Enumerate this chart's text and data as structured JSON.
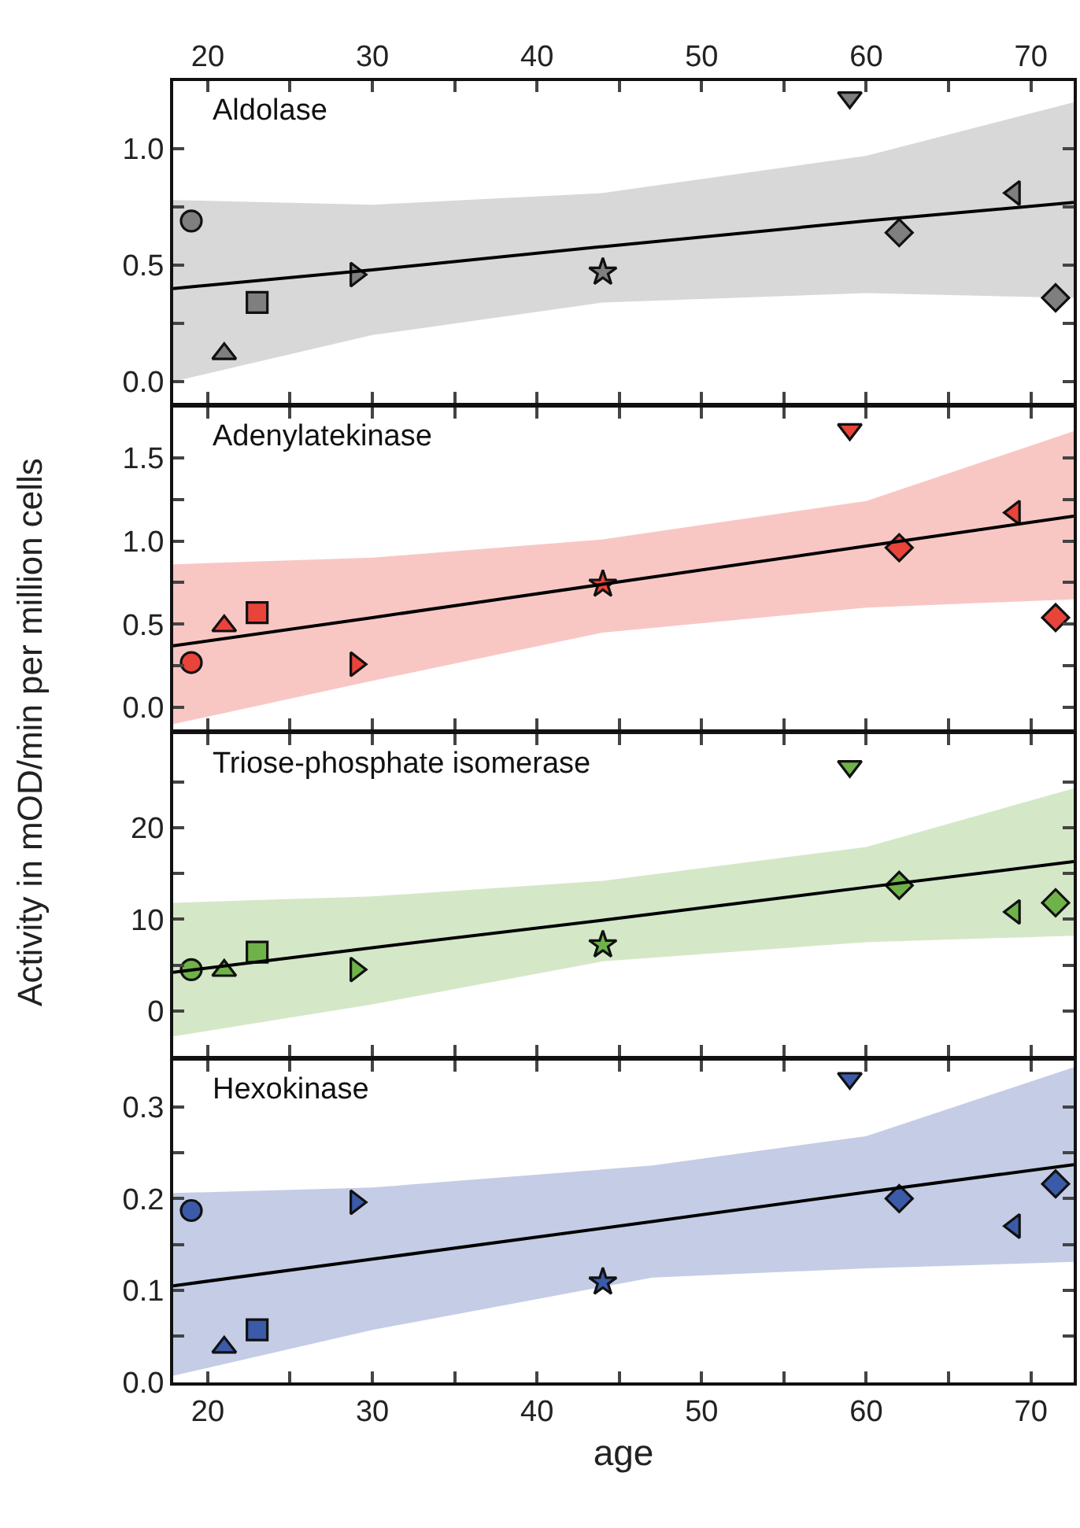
{
  "chart_data": [
    {
      "type": "scatter",
      "title": "Aldolase",
      "ylabel": "Activity in mOD/min per million cells",
      "xlim": [
        17.9,
        72.6
      ],
      "xticks": [
        20,
        {
          "value": 25,
          "label": null
        },
        30,
        {
          "value": 35,
          "label": null
        },
        40,
        {
          "value": 45,
          "label": null
        },
        50,
        {
          "value": 55,
          "label": null
        },
        60,
        {
          "value": 65,
          "label": null
        },
        70
      ],
      "ylim": [
        -0.09,
        1.29
      ],
      "yticks": [
        {
          "value": 0,
          "label": "0.0"
        },
        {
          "value": 0.25,
          "label": null
        },
        {
          "value": 0.5,
          "label": "0.5"
        },
        {
          "value": 0.75,
          "label": null
        },
        {
          "value": 1,
          "label": "1.0"
        }
      ],
      "series": [
        {
          "x": [
            19
          ],
          "values": [
            0.69
          ],
          "marker": "circle",
          "color": "#7f7f7f"
        },
        {
          "x": [
            21
          ],
          "values": [
            0.12
          ],
          "marker": "triangle-up",
          "color": "#7f7f7f"
        },
        {
          "x": [
            23
          ],
          "values": [
            0.34
          ],
          "marker": "square",
          "color": "#7f7f7f"
        },
        {
          "x": [
            29
          ],
          "values": [
            0.46
          ],
          "marker": "triangle-right",
          "color": "#7f7f7f"
        },
        {
          "x": [
            44
          ],
          "values": [
            0.47
          ],
          "marker": "star",
          "color": "#7f7f7f"
        },
        {
          "x": [
            59
          ],
          "values": [
            1.22
          ],
          "marker": "triangle-down",
          "color": "#7f7f7f"
        },
        {
          "x": [
            62
          ],
          "values": [
            0.64
          ],
          "marker": "diamond",
          "color": "#7f7f7f"
        },
        {
          "x": [
            69
          ],
          "values": [
            0.81
          ],
          "marker": "triangle-left",
          "color": "#7f7f7f"
        },
        {
          "x": [
            71.5
          ],
          "values": [
            0.36
          ],
          "marker": "diamond",
          "color": "#7f7f7f"
        },
        {
          "type": "line",
          "color": "#000000",
          "x": [
            17.9,
            30,
            44,
            60,
            72.6
          ],
          "values": [
            0.4,
            0.48,
            0.58,
            0.69,
            0.77
          ],
          "lower": [
            0.0,
            0.2,
            0.34,
            0.38,
            0.36
          ],
          "upper": [
            0.78,
            0.76,
            0.81,
            0.97,
            1.2
          ]
        }
      ]
    },
    {
      "type": "scatter",
      "title": "Adenylatekinase",
      "tick_labels": "y",
      "xlim": [
        17.9,
        72.6
      ],
      "xticks": [
        20,
        {
          "value": 25,
          "label": null
        },
        30,
        {
          "value": 35,
          "label": null
        },
        40,
        {
          "value": 45,
          "label": null
        },
        50,
        {
          "value": 55,
          "label": null
        },
        60,
        {
          "value": 65,
          "label": null
        },
        70
      ],
      "ylim": [
        -0.13,
        1.8
      ],
      "yticks": [
        {
          "value": 0,
          "label": "0.0"
        },
        {
          "value": 0.25,
          "label": null
        },
        {
          "value": 0.5,
          "label": "0.5"
        },
        {
          "value": 0.75,
          "label": null
        },
        {
          "value": 1,
          "label": "1.0"
        },
        {
          "value": 1.25,
          "label": null
        },
        1.5
      ],
      "series": [
        {
          "x": [
            19
          ],
          "values": [
            0.27
          ],
          "marker": "circle",
          "color": "#e8443a"
        },
        {
          "x": [
            21
          ],
          "values": [
            0.49
          ],
          "marker": "triangle-up",
          "color": "#e8443a"
        },
        {
          "x": [
            23
          ],
          "values": [
            0.57
          ],
          "marker": "square",
          "color": "#e8443a"
        },
        {
          "x": [
            29
          ],
          "values": [
            0.26
          ],
          "marker": "triangle-right",
          "color": "#e8443a"
        },
        {
          "x": [
            44
          ],
          "values": [
            0.74
          ],
          "marker": "star",
          "color": "#e8443a"
        },
        {
          "x": [
            59
          ],
          "values": [
            1.67
          ],
          "marker": "triangle-down",
          "color": "#e8443a"
        },
        {
          "x": [
            62
          ],
          "values": [
            0.96
          ],
          "marker": "diamond",
          "color": "#e8443a"
        },
        {
          "x": [
            69
          ],
          "values": [
            1.17
          ],
          "marker": "triangle-left",
          "color": "#e8443a"
        },
        {
          "x": [
            71.5
          ],
          "values": [
            0.54
          ],
          "marker": "diamond",
          "color": "#e8443a"
        },
        {
          "type": "line",
          "color": "#000000",
          "x": [
            17.9,
            30,
            44,
            60,
            72.6
          ],
          "values": [
            0.37,
            0.54,
            0.74,
            0.97,
            1.15
          ],
          "lower": [
            -0.1,
            0.16,
            0.45,
            0.6,
            0.65
          ],
          "upper": [
            0.86,
            0.9,
            1.01,
            1.24,
            1.66
          ]
        }
      ]
    },
    {
      "type": "scatter",
      "title": "Triose-phosphate isomerase",
      "tick_labels": "y",
      "xlim": [
        17.9,
        72.6
      ],
      "xticks": [
        20,
        {
          "value": 25,
          "label": null
        },
        30,
        {
          "value": 35,
          "label": null
        },
        40,
        {
          "value": 45,
          "label": null
        },
        50,
        {
          "value": 55,
          "label": null
        },
        60,
        {
          "value": 65,
          "label": null
        },
        70
      ],
      "ylim": [
        -4.9,
        30.2
      ],
      "yticks": [
        0,
        {
          "value": 5,
          "label": null
        },
        10,
        {
          "value": 15,
          "label": null
        },
        20,
        {
          "value": 25,
          "label": null
        }
      ],
      "series": [
        {
          "x": [
            19
          ],
          "values": [
            4.5
          ],
          "marker": "circle",
          "color": "#6fb24a"
        },
        {
          "x": [
            21
          ],
          "values": [
            4.4
          ],
          "marker": "triangle-up",
          "color": "#6fb24a"
        },
        {
          "x": [
            23
          ],
          "values": [
            6.4
          ],
          "marker": "square",
          "color": "#6fb24a"
        },
        {
          "x": [
            29
          ],
          "values": [
            4.5
          ],
          "marker": "triangle-right",
          "color": "#6fb24a"
        },
        {
          "x": [
            44
          ],
          "values": [
            7.2
          ],
          "marker": "star",
          "color": "#6fb24a"
        },
        {
          "x": [
            59
          ],
          "values": [
            26.7
          ],
          "marker": "triangle-down",
          "color": "#6fb24a"
        },
        {
          "x": [
            62
          ],
          "values": [
            13.7
          ],
          "marker": "diamond",
          "color": "#6fb24a"
        },
        {
          "x": [
            69
          ],
          "values": [
            10.8
          ],
          "marker": "triangle-left",
          "color": "#6fb24a"
        },
        {
          "x": [
            71.5
          ],
          "values": [
            11.8
          ],
          "marker": "diamond",
          "color": "#6fb24a"
        },
        {
          "type": "line",
          "color": "#000000",
          "x": [
            17.9,
            30,
            44,
            60,
            72.6
          ],
          "values": [
            4.2,
            6.9,
            9.9,
            13.5,
            16.3
          ],
          "lower": [
            -2.8,
            0.7,
            5.4,
            7.5,
            8.2
          ],
          "upper": [
            11.8,
            12.5,
            14.2,
            17.9,
            24.3
          ]
        }
      ]
    },
    {
      "type": "scatter",
      "title": "Hexokinase",
      "xlabel": "age",
      "xlim": [
        17.9,
        72.6
      ],
      "xticks": [
        20,
        {
          "value": 25,
          "label": null
        },
        30,
        {
          "value": 35,
          "label": null
        },
        40,
        {
          "value": 45,
          "label": null
        },
        50,
        {
          "value": 55,
          "label": null
        },
        60,
        {
          "value": 65,
          "label": null
        },
        70
      ],
      "ylim": [
        0,
        0.35
      ],
      "yticks": [
        {
          "value": 0,
          "label": "0.0"
        },
        {
          "value": 0.05,
          "label": null
        },
        0.1,
        {
          "value": 0.15,
          "label": null
        },
        0.2,
        {
          "value": 0.25,
          "label": null
        },
        0.3
      ],
      "series": [
        {
          "x": [
            19
          ],
          "values": [
            0.187
          ],
          "marker": "circle",
          "color": "#3b5ba8"
        },
        {
          "x": [
            21
          ],
          "values": [
            0.038
          ],
          "marker": "triangle-up",
          "color": "#3b5ba8"
        },
        {
          "x": [
            23
          ],
          "values": [
            0.057
          ],
          "marker": "square",
          "color": "#3b5ba8"
        },
        {
          "x": [
            29
          ],
          "values": [
            0.196
          ],
          "marker": "triangle-right",
          "color": "#3b5ba8"
        },
        {
          "x": [
            44
          ],
          "values": [
            0.109
          ],
          "marker": "star",
          "color": "#3b5ba8"
        },
        {
          "x": [
            59
          ],
          "values": [
            0.331
          ],
          "marker": "triangle-down",
          "color": "#3b5ba8"
        },
        {
          "x": [
            62
          ],
          "values": [
            0.2
          ],
          "marker": "diamond",
          "color": "#3b5ba8"
        },
        {
          "x": [
            69
          ],
          "values": [
            0.17
          ],
          "marker": "triangle-left",
          "color": "#3b5ba8"
        },
        {
          "x": [
            71.5
          ],
          "values": [
            0.216
          ],
          "marker": "diamond",
          "color": "#3b5ba8"
        },
        {
          "type": "line",
          "color": "#000000",
          "x": [
            17.9,
            30,
            47,
            60,
            72.6
          ],
          "values": [
            0.105,
            0.134,
            0.175,
            0.207,
            0.237
          ],
          "lower": [
            0.007,
            0.057,
            0.114,
            0.124,
            0.131
          ],
          "upper": [
            0.206,
            0.212,
            0.236,
            0.268,
            0.343
          ]
        }
      ]
    }
  ]
}
